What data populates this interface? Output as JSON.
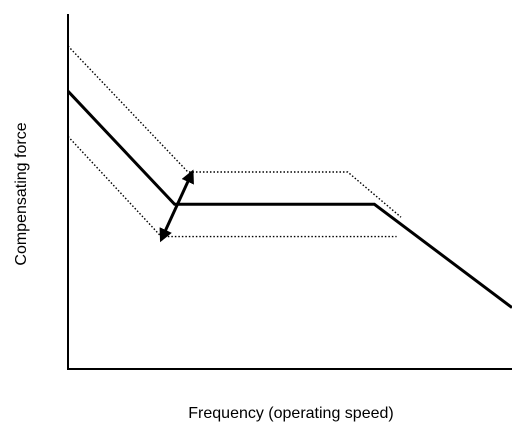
{
  "chart_data": {
    "type": "line",
    "title": "",
    "xlabel": "Frequency (operating speed)",
    "ylabel": "Compensating force",
    "xlim": [
      0,
      100
    ],
    "ylim": [
      0,
      100
    ],
    "grid": false,
    "ticks": false,
    "adjust_arrow": {
      "from": [
        21,
        40
      ],
      "to": [
        28,
        61
      ]
    },
    "series": [
      {
        "style": "solid",
        "color": "#000000",
        "points": [
          [
            0,
            86
          ],
          [
            24,
            51
          ],
          [
            69,
            51
          ],
          [
            100,
            19
          ]
        ]
      },
      {
        "style": "dotted",
        "color": "#000000",
        "points": [
          [
            0,
            100
          ],
          [
            27,
            61
          ],
          [
            63,
            61
          ],
          [
            75,
            47
          ]
        ]
      },
      {
        "style": "dotted",
        "color": "#000000",
        "points": [
          [
            0,
            72
          ],
          [
            21,
            41
          ],
          [
            74,
            41
          ]
        ]
      }
    ]
  }
}
